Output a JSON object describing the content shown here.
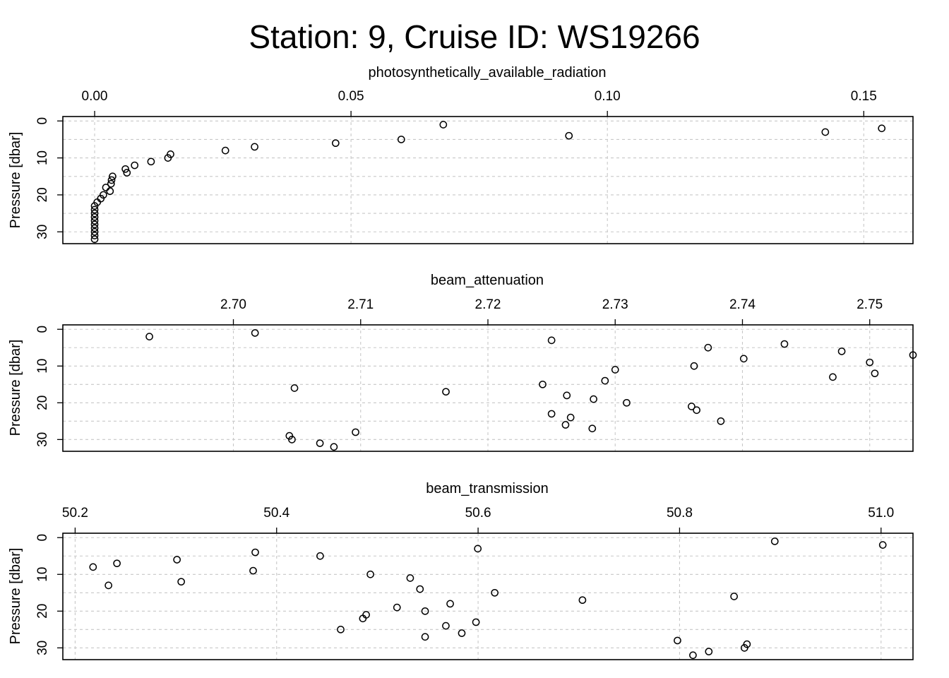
{
  "title": "Station: 9, Cruise ID: WS19266",
  "chart_data": [
    {
      "type": "scatter",
      "xlabel": "photosynthetically_available_radiation",
      "ylabel": "Pressure [dbar]",
      "xlim": [
        -0.0062,
        0.1596
      ],
      "ylim": [
        33.2,
        -1.2
      ],
      "xticks": [
        0,
        0.05,
        0.1,
        0.15
      ],
      "xtick_labels": [
        "0.00",
        "0.05",
        "0.10",
        "0.15"
      ],
      "yticks": [
        0,
        10,
        20,
        30
      ],
      "ytick_labels": [
        "0",
        "10",
        "20",
        "30"
      ],
      "grid": true,
      "x": [
        0.068,
        0.1535,
        0.1425,
        0.0925,
        0.0598,
        0.047,
        0.0312,
        0.0255,
        0.0148,
        0.0143,
        0.011,
        0.0078,
        0.006,
        0.0063,
        0.0035,
        0.0033,
        0.0032,
        0.0022,
        0.003,
        0.0017,
        0.0012,
        0.0005,
        0.0,
        0.0,
        0.0,
        0.0,
        0.0,
        0.0,
        0.0,
        0.0,
        0.0,
        0.0
      ],
      "y": [
        1,
        2,
        3,
        4,
        5,
        6,
        7,
        8,
        9,
        10,
        11,
        12,
        13,
        14,
        15,
        16,
        17,
        18,
        19,
        20,
        21,
        22,
        23,
        24,
        25,
        26,
        27,
        28,
        29,
        30,
        31,
        32
      ]
    },
    {
      "type": "scatter",
      "xlabel": "beam_attenuation",
      "ylabel": "Pressure [dbar]",
      "xlim": [
        2.6866,
        2.7534
      ],
      "ylim": [
        33.2,
        -1.2
      ],
      "xticks": [
        2.7,
        2.71,
        2.72,
        2.73,
        2.74,
        2.75
      ],
      "xtick_labels": [
        "2.70",
        "2.71",
        "2.72",
        "2.73",
        "2.74",
        "2.75"
      ],
      "yticks": [
        0,
        10,
        20,
        30
      ],
      "ytick_labels": [
        "0",
        "10",
        "20",
        "30"
      ],
      "grid": true,
      "x": [
        2.7017,
        2.6934,
        2.725,
        2.7433,
        2.7373,
        2.7478,
        2.7534,
        2.7401,
        2.75,
        2.7362,
        2.73,
        2.7504,
        2.7471,
        2.7292,
        2.7243,
        2.7048,
        2.7167,
        2.7262,
        2.7283,
        2.7309,
        2.736,
        2.7364,
        2.725,
        2.7265,
        2.7383,
        2.7261,
        2.7282,
        2.7096,
        2.7044,
        2.7046,
        2.7068,
        2.7079
      ],
      "y": [
        1,
        2,
        3,
        4,
        5,
        6,
        7,
        8,
        9,
        10,
        11,
        12,
        13,
        14,
        15,
        16,
        17,
        18,
        19,
        20,
        21,
        22,
        23,
        24,
        25,
        26,
        27,
        28,
        29,
        30,
        31,
        32
      ]
    },
    {
      "type": "scatter",
      "xlabel": "beam_transmission",
      "ylabel": "Pressure [dbar]",
      "xlim": [
        50.1878,
        51.0317
      ],
      "ylim": [
        33.2,
        -1.2
      ],
      "xticks": [
        50.2,
        50.4,
        50.6,
        50.8,
        51.0
      ],
      "xtick_labels": [
        "50.2",
        "50.4",
        "50.6",
        "50.8",
        "51.0"
      ],
      "yticks": [
        0,
        10,
        20,
        30
      ],
      "ytick_labels": [
        "0",
        "10",
        "20",
        "30"
      ],
      "grid": true,
      "x": [
        50.8945,
        51.0017,
        50.5997,
        50.3788,
        50.4432,
        50.3011,
        50.2415,
        50.2178,
        50.3767,
        50.4931,
        50.5326,
        50.3053,
        50.2331,
        50.5423,
        50.6165,
        50.8541,
        50.7036,
        50.5723,
        50.5195,
        50.5474,
        50.4889,
        50.4856,
        50.5979,
        50.568,
        50.4636,
        50.5838,
        50.5474,
        50.7979,
        50.8669,
        50.8644,
        50.829,
        50.8133
      ],
      "y": [
        1,
        2,
        3,
        4,
        5,
        6,
        7,
        8,
        9,
        10,
        11,
        12,
        13,
        14,
        15,
        16,
        17,
        18,
        19,
        20,
        21,
        22,
        23,
        24,
        25,
        26,
        27,
        28,
        29,
        30,
        31,
        32
      ]
    }
  ]
}
